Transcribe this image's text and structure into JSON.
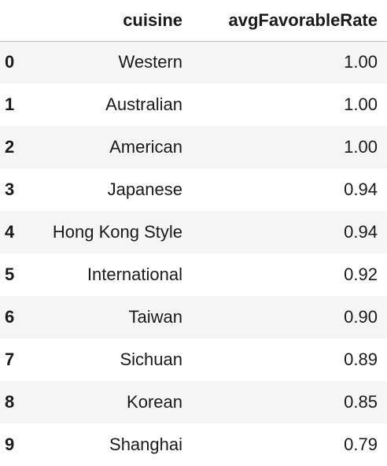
{
  "table": {
    "columns": {
      "index": "",
      "cuisine": "cuisine",
      "rate": "avgFavorableRate"
    },
    "rows": [
      {
        "index": "0",
        "cuisine": "Western",
        "rate": "1.00"
      },
      {
        "index": "1",
        "cuisine": "Australian",
        "rate": "1.00"
      },
      {
        "index": "2",
        "cuisine": "American",
        "rate": "1.00"
      },
      {
        "index": "3",
        "cuisine": "Japanese",
        "rate": "0.94"
      },
      {
        "index": "4",
        "cuisine": "Hong Kong Style",
        "rate": "0.94"
      },
      {
        "index": "5",
        "cuisine": "International",
        "rate": "0.92"
      },
      {
        "index": "6",
        "cuisine": "Taiwan",
        "rate": "0.90"
      },
      {
        "index": "7",
        "cuisine": "Sichuan",
        "rate": "0.89"
      },
      {
        "index": "8",
        "cuisine": "Korean",
        "rate": "0.85"
      },
      {
        "index": "9",
        "cuisine": "Shanghai",
        "rate": "0.79"
      }
    ]
  }
}
